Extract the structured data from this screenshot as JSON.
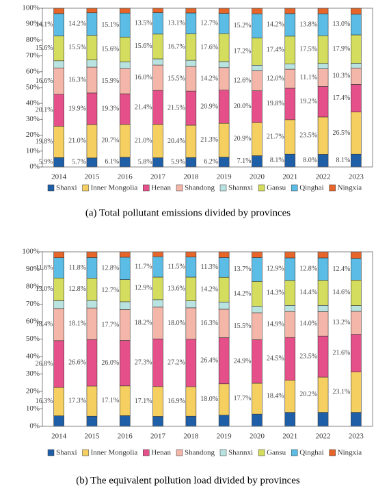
{
  "chart_data": [
    {
      "type": "stacked_bar",
      "caption": "(a) Total pollutant emissions divided by provinces",
      "categories": [
        "2014",
        "2015",
        "2016",
        "2017",
        "2018",
        "2019",
        "2020",
        "2021",
        "2022",
        "2023"
      ],
      "ylim": [
        0,
        100
      ],
      "yticks": [
        {
          "value": 0,
          "label": "0%"
        },
        {
          "value": 10,
          "label": "10%"
        },
        {
          "value": 20,
          "label": "20%"
        },
        {
          "value": 30,
          "label": "30%"
        },
        {
          "value": 40,
          "label": "40%"
        },
        {
          "value": 50,
          "label": "50%"
        },
        {
          "value": 60,
          "label": "60%"
        },
        {
          "value": 70,
          "label": "70%"
        },
        {
          "value": 80,
          "label": "80%"
        },
        {
          "value": 90,
          "label": "90%"
        },
        {
          "value": 100,
          "label": "100%"
        }
      ],
      "series": [
        {
          "name": "Shanxi",
          "color": "#1f5fa8",
          "values": [
            5.9,
            5.7,
            6.1,
            5.8,
            5.9,
            6.2,
            7.1,
            8.1,
            8.0,
            8.1
          ],
          "value_labels": [
            "5.9%",
            "5.7%",
            "6.1%",
            "5.8%",
            "5.9%",
            "6.2%",
            "7.1%",
            "8.1%",
            "8.0%",
            "8.1%"
          ]
        },
        {
          "name": "Inner Mongolia",
          "color": "#f5d061",
          "values": [
            19.8,
            21.0,
            20.7,
            21.0,
            20.4,
            21.3,
            20.9,
            21.7,
            23.5,
            26.5
          ],
          "value_labels": [
            "19.8%",
            "21.0%",
            "20.7%",
            "21.0%",
            "20.4%",
            "21.3%",
            "20.9%",
            "21.7%",
            "23.5%",
            "26.5%"
          ]
        },
        {
          "name": "Henan",
          "color": "#e6508a",
          "values": [
            20.1,
            19.9,
            19.3,
            21.4,
            21.5,
            20.9,
            20.0,
            19.8,
            19.2,
            17.4
          ],
          "value_labels": [
            "20.1%",
            "19.9%",
            "19.3%",
            "21.4%",
            "21.5%",
            "20.9%",
            "20.0%",
            "19.8%",
            "19.2%",
            "17.4%"
          ]
        },
        {
          "name": "Shandong",
          "color": "#f4b6a8",
          "values": [
            16.6,
            16.3,
            15.9,
            16.0,
            15.5,
            14.2,
            12.6,
            12.0,
            11.1,
            10.3
          ],
          "value_labels": [
            "16.6%",
            "16.3%",
            "15.9%",
            "16.0%",
            "15.5%",
            "14.2%",
            "12.6%",
            "12.0%",
            "11.1%",
            "10.3%"
          ]
        },
        {
          "name": "Shannxi",
          "color": "#b9e3e0",
          "values": [
            4.5,
            4.5,
            4.2,
            3.9,
            3.9,
            3.8,
            3.5,
            3.4,
            3.4,
            3.0
          ]
        },
        {
          "name": "Gansu",
          "color": "#d4dd5e",
          "values": [
            15.6,
            15.5,
            15.6,
            15.6,
            16.7,
            17.6,
            17.2,
            17.4,
            17.5,
            17.9
          ],
          "value_labels": [
            "15.6%",
            "15.5%",
            "15.6%",
            "15.6%",
            "16.7%",
            "17.6%",
            "17.2%",
            "17.4%",
            "17.5%",
            "17.9%"
          ]
        },
        {
          "name": "Qinghai",
          "color": "#5bbde6",
          "values": [
            14.1,
            14.2,
            15.1,
            13.5,
            13.1,
            12.7,
            15.2,
            14.2,
            13.8,
            13.0
          ],
          "value_labels": [
            "14.1%",
            "14.2%",
            "15.1%",
            "13.5%",
            "13.1%",
            "12.7%",
            "15.2%",
            "14.2%",
            "13.8%",
            "13.0%"
          ]
        },
        {
          "name": "Ningxia",
          "color": "#e8652a",
          "values": [
            3.4,
            2.9,
            3.1,
            2.8,
            3.0,
            3.3,
            3.5,
            3.4,
            3.5,
            3.8
          ]
        }
      ]
    },
    {
      "type": "stacked_bar",
      "caption": "(b) The equivalent pollution load divided by provinces",
      "categories": [
        "2014",
        "2015",
        "2016",
        "2017",
        "2018",
        "2019",
        "2020",
        "2021",
        "2022",
        "2023"
      ],
      "ylim": [
        0,
        100
      ],
      "yticks": [
        {
          "value": 0,
          "label": "0%"
        },
        {
          "value": 10,
          "label": "10%"
        },
        {
          "value": 20,
          "label": "20%"
        },
        {
          "value": 30,
          "label": "30%"
        },
        {
          "value": 40,
          "label": "40%"
        },
        {
          "value": 50,
          "label": "50%"
        },
        {
          "value": 60,
          "label": "60%"
        },
        {
          "value": 70,
          "label": "70%"
        },
        {
          "value": 80,
          "label": "80%"
        },
        {
          "value": 90,
          "label": "90%"
        },
        {
          "value": 100,
          "label": "100%"
        }
      ],
      "series": [
        {
          "name": "Shanxi",
          "color": "#1f5fa8",
          "values": [
            6.0,
            5.8,
            6.1,
            5.7,
            5.8,
            6.4,
            7.0,
            8.0,
            8.0,
            8.0
          ]
        },
        {
          "name": "Inner Mongolia",
          "color": "#f5d061",
          "values": [
            16.3,
            17.3,
            17.1,
            17.1,
            16.9,
            18.0,
            17.7,
            18.4,
            20.2,
            23.1
          ],
          "value_labels": [
            "16.3%",
            "17.3%",
            "17.1%",
            "17.1%",
            "16.9%",
            "18.0%",
            "17.7%",
            "18.4%",
            "20.2%",
            "23.1%"
          ]
        },
        {
          "name": "Henan",
          "color": "#e6508a",
          "values": [
            26.8,
            26.6,
            26.0,
            27.3,
            27.2,
            26.4,
            24.9,
            24.5,
            23.5,
            21.6
          ],
          "value_labels": [
            "26.8%",
            "26.6%",
            "26.0%",
            "27.3%",
            "27.2%",
            "26.4%",
            "24.9%",
            "24.5%",
            "23.5%",
            "21.6%"
          ]
        },
        {
          "name": "Shandong",
          "color": "#f4b6a8",
          "values": [
            18.4,
            18.1,
            17.7,
            18.2,
            18.0,
            16.3,
            15.5,
            14.9,
            14.0,
            13.2
          ],
          "value_labels": [
            "18.4%",
            "18.1%",
            "17.7%",
            "18.2%",
            "18.0%",
            "16.3%",
            "15.5%",
            "14.9%",
            "14.0%",
            "13.2%"
          ]
        },
        {
          "name": "Shannxi",
          "color": "#b9e3e0",
          "values": [
            4.5,
            4.3,
            4.5,
            4.3,
            4.0,
            4.1,
            3.7,
            3.5,
            3.6,
            3.3
          ]
        },
        {
          "name": "Gansu",
          "color": "#d4dd5e",
          "values": [
            13.0,
            12.8,
            12.7,
            12.9,
            13.6,
            14.2,
            14.2,
            14.3,
            14.4,
            14.6
          ],
          "value_labels": [
            "13.0%",
            "12.8%",
            "12.7%",
            "12.9%",
            "13.6%",
            "14.2%",
            "14.2%",
            "14.3%",
            "14.4%",
            "14.6%"
          ]
        },
        {
          "name": "Qinghai",
          "color": "#5bbde6",
          "values": [
            11.6,
            11.8,
            12.8,
            11.7,
            11.5,
            11.3,
            13.7,
            12.9,
            12.8,
            12.4
          ],
          "value_labels": [
            "11.6%",
            "11.8%",
            "12.8%",
            "11.7%",
            "11.5%",
            "11.3%",
            "13.7%",
            "12.9%",
            "12.8%",
            "12.4%"
          ]
        },
        {
          "name": "Ningxia",
          "color": "#e8652a",
          "values": [
            3.4,
            3.3,
            3.1,
            2.8,
            3.0,
            3.3,
            3.3,
            3.5,
            3.5,
            3.8
          ]
        }
      ]
    }
  ]
}
